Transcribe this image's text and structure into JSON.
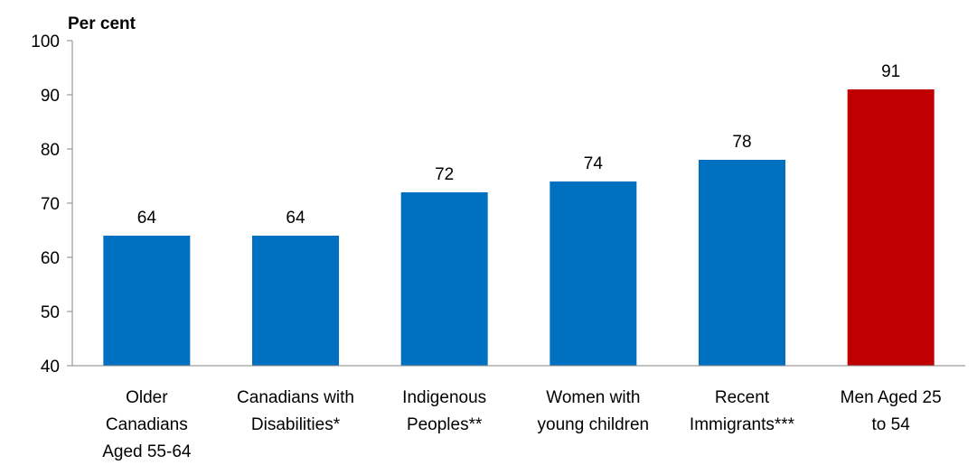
{
  "chart_data": {
    "type": "bar",
    "ylabel": "Per cent",
    "xlabel": "",
    "ylim": [
      40,
      100
    ],
    "yticks": [
      40,
      50,
      60,
      70,
      80,
      90,
      100
    ],
    "categories": [
      [
        "Older",
        "Canadians",
        "Aged 55-64"
      ],
      [
        "Canadians with",
        "Disabilities*"
      ],
      [
        "Indigenous",
        "Peoples**"
      ],
      [
        "Women with",
        "young children"
      ],
      [
        "Recent",
        "Immigrants***"
      ],
      [
        "Men Aged 25",
        "to 54"
      ]
    ],
    "values": [
      64,
      64,
      72,
      74,
      78,
      91
    ],
    "data_labels": [
      "64",
      "64",
      "72",
      "74",
      "78",
      "91"
    ],
    "colors": [
      "#0070c0",
      "#0070c0",
      "#0070c0",
      "#0070c0",
      "#0070c0",
      "#c00000"
    ],
    "grid": false,
    "legend": "none"
  }
}
